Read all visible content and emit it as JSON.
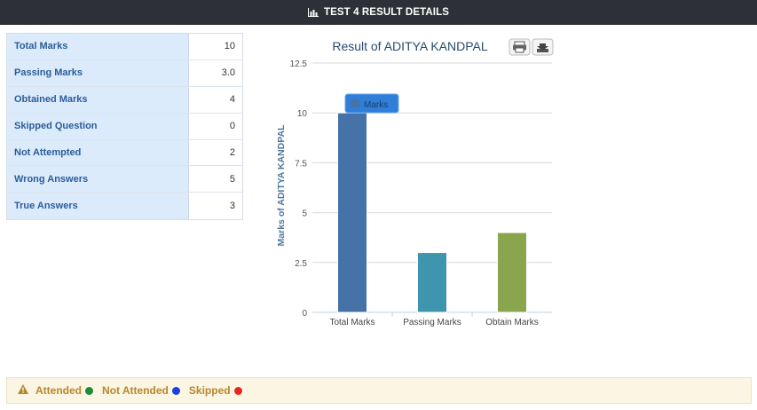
{
  "header": {
    "title": "TEST 4 RESULT DETAILS"
  },
  "summary": {
    "rows": [
      {
        "label": "Total Marks",
        "value": "10"
      },
      {
        "label": "Passing Marks",
        "value": "3.0"
      },
      {
        "label": "Obtained Marks",
        "value": "4"
      },
      {
        "label": "Skipped Question",
        "value": "0"
      },
      {
        "label": "Not Attempted",
        "value": "2"
      },
      {
        "label": "Wrong Answers",
        "value": "5"
      },
      {
        "label": "True Answers",
        "value": "3"
      }
    ]
  },
  "chart_data": {
    "type": "bar",
    "title": "Result of ADITYA KANDPAL",
    "ylabel": "Marks of ADITYA KANDPAL",
    "xlabel": "",
    "categories": [
      "Total Marks",
      "Passing Marks",
      "Obtain Marks"
    ],
    "series": [
      {
        "name": "Marks",
        "values": [
          10,
          3,
          4
        ]
      }
    ],
    "colors": [
      "#4572a7",
      "#3d96ae",
      "#89a54e"
    ],
    "ylim": [
      0,
      12.5
    ],
    "yticks": [
      "0",
      "2.5",
      "5",
      "7.5",
      "10",
      "12.5"
    ],
    "grid": true,
    "tooltip": {
      "label": "Marks"
    }
  },
  "legend": {
    "attended": {
      "label": "Attended",
      "color": "#1f8a3a"
    },
    "not_attended": {
      "label": "Not Attended",
      "color": "#1a3fe0"
    },
    "skipped": {
      "label": "Skipped",
      "color": "#e8261f"
    }
  },
  "icons": [
    "bar-chart-icon",
    "print-icon",
    "download-icon",
    "warning-icon"
  ]
}
